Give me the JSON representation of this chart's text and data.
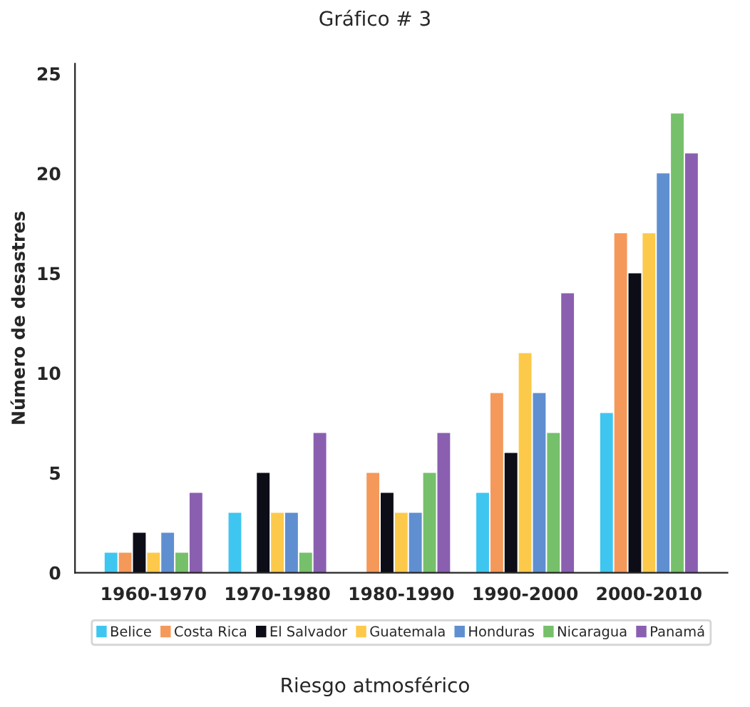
{
  "chart_data": {
    "type": "bar",
    "title": "Gráfico # 3",
    "ylabel": "Número de desastres",
    "annotations": [
      "Riesgo atmosférico"
    ],
    "categories": [
      "1960-1970",
      "1970-1980",
      "1980-1990",
      "1990-2000",
      "2000-2010"
    ],
    "series": [
      {
        "name": "Belice",
        "color": "#3fc6f0",
        "values": [
          1,
          3,
          0,
          4,
          8
        ]
      },
      {
        "name": "Costa Rica",
        "color": "#f4995a",
        "values": [
          1,
          0,
          5,
          9,
          17
        ]
      },
      {
        "name": "El Salvador",
        "color": "#0d0d18",
        "values": [
          2,
          5,
          4,
          6,
          15
        ]
      },
      {
        "name": "Guatemala",
        "color": "#fdc94a",
        "values": [
          1,
          3,
          3,
          11,
          17
        ]
      },
      {
        "name": "Honduras",
        "color": "#5f8fd0",
        "values": [
          2,
          3,
          3,
          9,
          20
        ]
      },
      {
        "name": "Nicaragua",
        "color": "#76c06b",
        "values": [
          1,
          1,
          5,
          7,
          23
        ]
      },
      {
        "name": "Panamá",
        "color": "#8a5fb0",
        "values": [
          4,
          7,
          7,
          14,
          21
        ]
      }
    ],
    "ylim": [
      0,
      25.5
    ],
    "yticks": [
      0,
      5,
      10,
      15,
      20,
      25
    ],
    "grid": false,
    "legend": "bottom"
  }
}
